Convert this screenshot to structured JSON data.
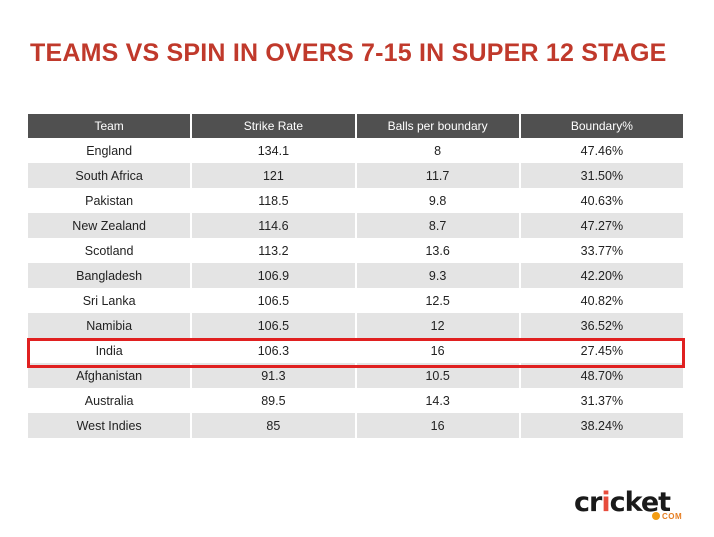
{
  "title": "TEAMS VS SPIN IN OVERS 7-15 IN SUPER 12 STAGE",
  "chart_data": {
    "type": "table",
    "columns": [
      "Team",
      "Strike Rate",
      "Balls per boundary",
      "Boundary%"
    ],
    "rows": [
      [
        "England",
        "134.1",
        "8",
        "47.46%"
      ],
      [
        "South Africa",
        "121",
        "11.7",
        "31.50%"
      ],
      [
        "Pakistan",
        "118.5",
        "9.8",
        "40.63%"
      ],
      [
        "New Zealand",
        "114.6",
        "8.7",
        "47.27%"
      ],
      [
        "Scotland",
        "113.2",
        "13.6",
        "33.77%"
      ],
      [
        "Bangladesh",
        "106.9",
        "9.3",
        "42.20%"
      ],
      [
        "Sri Lanka",
        "106.5",
        "12.5",
        "40.82%"
      ],
      [
        "Namibia",
        "106.5",
        "12",
        "36.52%"
      ],
      [
        "India",
        "106.3",
        "16",
        "27.45%"
      ],
      [
        "Afghanistan",
        "91.3",
        "10.5",
        "48.70%"
      ],
      [
        "Australia",
        "89.5",
        "14.3",
        "31.37%"
      ],
      [
        "West Indies",
        "85",
        "16",
        "38.24%"
      ]
    ],
    "highlighted_row": "India"
  },
  "colors": {
    "title": "#c0392b",
    "header_bg": "#505050",
    "stripe": "#e4e4e4",
    "highlight_border": "#e02020"
  },
  "logo": {
    "prefix": "cr",
    "ball": "i",
    "suffix": "cket",
    "domain": "COM"
  }
}
